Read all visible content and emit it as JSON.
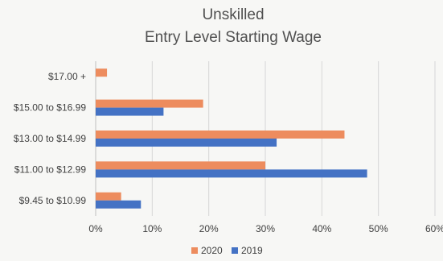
{
  "chart_data": {
    "type": "bar",
    "orientation": "horizontal",
    "title": [
      "Unskilled",
      "Entry Level Starting Wage"
    ],
    "categories": [
      "$17.00 +",
      "$15.00 to $16.99",
      "$13.00 to $14.99",
      "$11.00 to $12.99",
      "$9.45 to $10.99"
    ],
    "series": [
      {
        "name": "2020",
        "color": "#ed8c5e",
        "values": [
          2,
          19,
          44,
          30,
          4.5
        ]
      },
      {
        "name": "2019",
        "color": "#4472c4",
        "values": [
          0,
          12,
          32,
          48,
          8
        ]
      }
    ],
    "xlim": [
      0,
      60
    ],
    "xticks": [
      "0%",
      "10%",
      "20%",
      "30%",
      "40%",
      "50%",
      "60%"
    ],
    "grid": "vertical",
    "legend": "bottom"
  }
}
